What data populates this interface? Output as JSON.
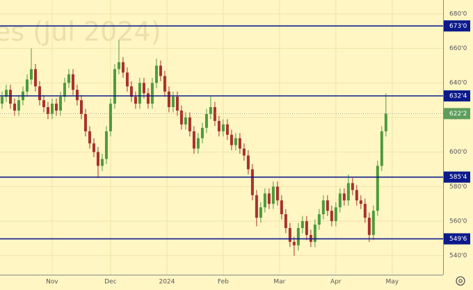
{
  "chart_data": {
    "type": "candlestick",
    "watermark": "es (Jul 2024)",
    "open": [
      628,
      632,
      636,
      628,
      624,
      630,
      635,
      642,
      648,
      638,
      630,
      626,
      622,
      628,
      624,
      632,
      640,
      645,
      636,
      630,
      622,
      612,
      605,
      600,
      592,
      596,
      612,
      628,
      648,
      652,
      646,
      638,
      632,
      628,
      640,
      634,
      628,
      640,
      650,
      644,
      635,
      626,
      632,
      624,
      616,
      620,
      612,
      602,
      608,
      614,
      622,
      626,
      618,
      612,
      616,
      610,
      604,
      608,
      602,
      598,
      590,
      575,
      562,
      568,
      576,
      570,
      580,
      572,
      564,
      556,
      548,
      546,
      556,
      560,
      552,
      548,
      558,
      564,
      572,
      566,
      560,
      568,
      576,
      572,
      582,
      578,
      572,
      570,
      562,
      552,
      566,
      592,
      612
    ],
    "high": [
      635,
      639,
      639,
      631,
      633,
      638,
      645,
      660,
      651,
      641,
      633,
      629,
      631,
      631,
      635,
      643,
      648,
      648,
      639,
      633,
      625,
      615,
      608,
      603,
      599,
      615,
      631,
      651,
      665,
      655,
      649,
      641,
      635,
      643,
      643,
      637,
      643,
      654,
      653,
      647,
      638,
      635,
      635,
      627,
      623,
      623,
      615,
      611,
      617,
      625,
      632,
      629,
      621,
      619,
      619,
      613,
      611,
      611,
      605,
      601,
      593,
      578,
      571,
      579,
      579,
      583,
      583,
      575,
      567,
      559,
      551,
      559,
      563,
      563,
      555,
      561,
      567,
      575,
      575,
      569,
      571,
      579,
      579,
      587,
      585,
      581,
      575,
      573,
      565,
      569,
      595,
      615,
      634
    ],
    "low": [
      625,
      629,
      625,
      621,
      621,
      627,
      632,
      639,
      635,
      627,
      623,
      619,
      619,
      621,
      621,
      629,
      637,
      633,
      627,
      619,
      609,
      602,
      597,
      585,
      589,
      593,
      609,
      625,
      645,
      643,
      635,
      629,
      625,
      625,
      631,
      625,
      625,
      637,
      641,
      632,
      623,
      623,
      621,
      613,
      613,
      609,
      599,
      599,
      605,
      611,
      619,
      615,
      609,
      609,
      607,
      601,
      601,
      599,
      595,
      587,
      572,
      557,
      559,
      565,
      567,
      567,
      569,
      561,
      553,
      545,
      540,
      543,
      553,
      549,
      545,
      545,
      555,
      561,
      563,
      557,
      557,
      565,
      569,
      569,
      575,
      569,
      567,
      559,
      548,
      549,
      563,
      589,
      609
    ],
    "close": [
      632,
      636,
      628,
      624,
      630,
      635,
      642,
      648,
      638,
      630,
      626,
      622,
      628,
      624,
      632,
      640,
      645,
      636,
      630,
      622,
      612,
      605,
      600,
      592,
      596,
      612,
      628,
      648,
      652,
      646,
      638,
      632,
      628,
      640,
      634,
      628,
      640,
      650,
      644,
      635,
      626,
      632,
      624,
      616,
      620,
      612,
      602,
      608,
      614,
      622,
      626,
      618,
      612,
      616,
      610,
      604,
      608,
      602,
      598,
      590,
      575,
      562,
      568,
      576,
      570,
      580,
      572,
      564,
      556,
      548,
      546,
      556,
      560,
      552,
      548,
      558,
      564,
      572,
      566,
      560,
      568,
      576,
      572,
      582,
      578,
      572,
      570,
      562,
      552,
      566,
      592,
      612,
      622.25
    ],
    "up_color": "#4f9a3c",
    "down_color": "#a8322b",
    "ylim": [
      529,
      688
    ],
    "yticks": [
      {
        "value": 540,
        "label": "540'0"
      },
      {
        "value": 560,
        "label": "560'0"
      },
      {
        "value": 580,
        "label": "580'0"
      },
      {
        "value": 600,
        "label": "600'0"
      },
      {
        "value": 620,
        "label": "620'0"
      },
      {
        "value": 640,
        "label": "640'0"
      },
      {
        "value": 660,
        "label": "660'0"
      },
      {
        "value": 680,
        "label": "680'0"
      }
    ],
    "xlim": [
      -0.5,
      105.7
    ],
    "xticks": [
      {
        "value": 12,
        "label": "Nov"
      },
      {
        "value": 26,
        "label": "Dec"
      },
      {
        "value": 39.5,
        "label": "2024"
      },
      {
        "value": 53,
        "label": "Feb"
      },
      {
        "value": 66.5,
        "label": "Mar"
      },
      {
        "value": 80,
        "label": "Apr"
      },
      {
        "value": 93.5,
        "label": "May"
      }
    ],
    "levels": [
      {
        "value": 673,
        "label": "673'0"
      },
      {
        "value": 632.5,
        "label": "632'4"
      },
      {
        "value": 585.5,
        "label": "585'4"
      },
      {
        "value": 549.75,
        "label": "549'6"
      }
    ],
    "level_color": "#0c1a8c",
    "last": {
      "value": 622.25,
      "label": "622'2",
      "color": "#5c9e5c"
    },
    "grid": true
  }
}
